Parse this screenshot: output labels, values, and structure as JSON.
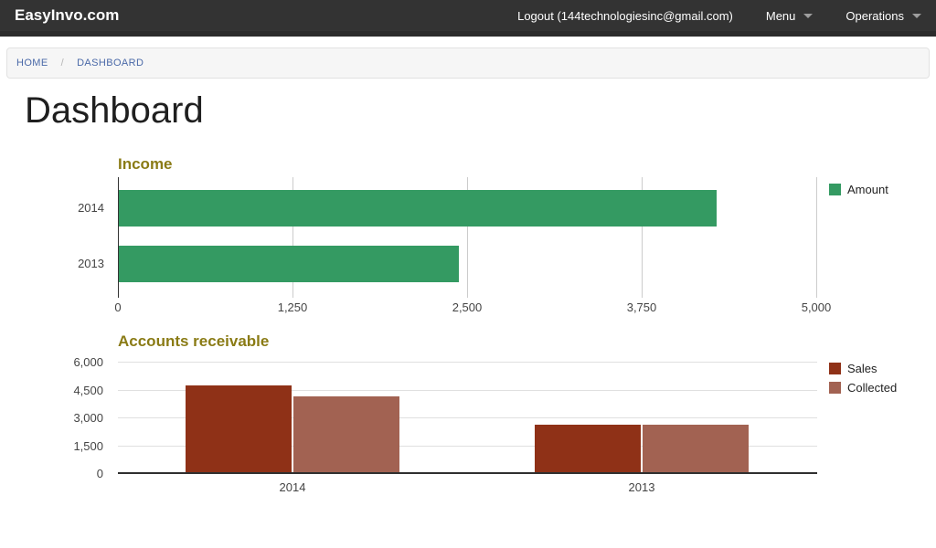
{
  "nav": {
    "brand": "EasyInvo.com",
    "logout_label": "Logout (144technologiesinc@gmail.com)",
    "menu_label": "Menu",
    "operations_label": "Operations"
  },
  "breadcrumb": {
    "home": "HOME",
    "separator": "/",
    "current": "DASHBOARD"
  },
  "page": {
    "title": "Dashboard"
  },
  "colors": {
    "nav_bg": "#333333",
    "amount_green": "#349a62",
    "sales_red": "#8f3117",
    "collected_red": "#a26252",
    "chart_title_olive": "#8a7b15",
    "breadcrumb_link_blue": "#4a69a8"
  },
  "chart_data": [
    {
      "type": "bar",
      "orientation": "horizontal",
      "title": "Income",
      "categories": [
        "2014",
        "2013"
      ],
      "series": [
        {
          "name": "Amount",
          "values": [
            4280,
            2435
          ],
          "color": "#349a62"
        }
      ],
      "xlim": [
        0,
        5000
      ],
      "xticks": [
        "0",
        "1,250",
        "2,500",
        "3,750",
        "5,000"
      ],
      "xtick_values": [
        0,
        1250,
        2500,
        3750,
        5000
      ],
      "grid": "vertical",
      "legend_position": "right"
    },
    {
      "type": "bar",
      "orientation": "vertical",
      "title": "Accounts receivable",
      "categories": [
        "2014",
        "2013"
      ],
      "series": [
        {
          "name": "Sales",
          "values": [
            4670,
            2560
          ],
          "color": "#8f3117"
        },
        {
          "name": "Collected",
          "values": [
            4080,
            2560
          ],
          "color": "#a26252"
        }
      ],
      "ylim": [
        0,
        6000
      ],
      "yticks": [
        "6,000",
        "4,500",
        "3,000",
        "1,500",
        "0"
      ],
      "ytick_values": [
        6000,
        4500,
        3000,
        1500,
        0
      ],
      "grid": "horizontal",
      "legend_position": "right"
    }
  ]
}
